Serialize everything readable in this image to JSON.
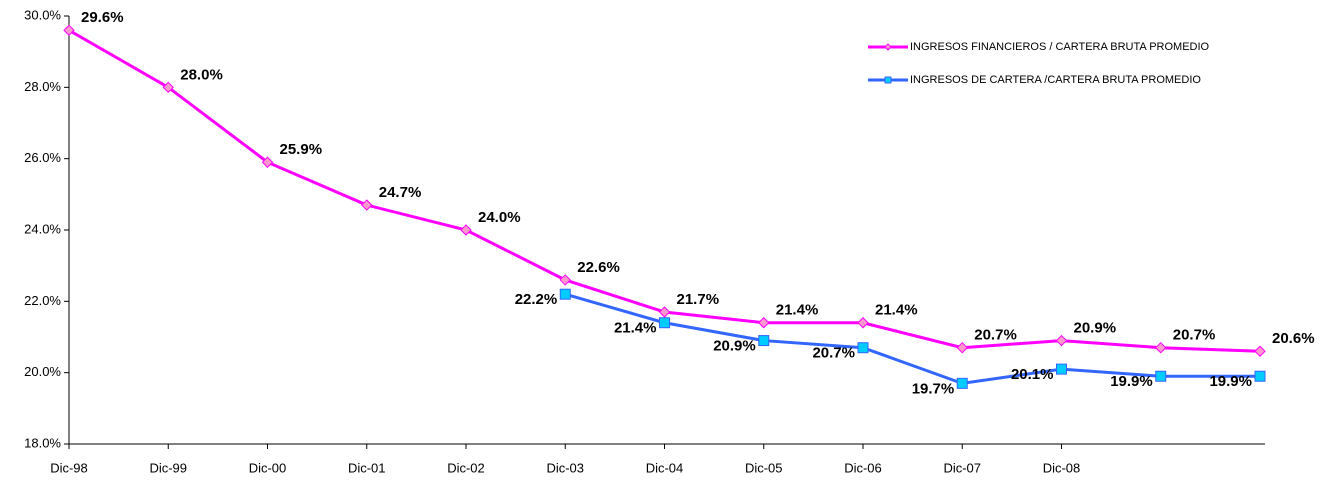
{
  "chart_data": {
    "type": "line",
    "categories": [
      "Dic-98",
      "Dic-99",
      "Dic-00",
      "Dic-01",
      "Dic-02",
      "Dic-03",
      "Dic-04",
      "Dic-05",
      "Dic-06",
      "Dic-07",
      "Dic-08",
      null,
      null
    ],
    "series": [
      {
        "name": "INGRESOS FINANCIEROS / CARTERA BRUTA PROMEDIO",
        "color": "#ff00ff",
        "marker": "diamond",
        "marker_color": "#ff99cc",
        "values": [
          29.6,
          28.0,
          25.9,
          24.7,
          24.0,
          22.6,
          21.7,
          21.4,
          21.4,
          20.7,
          20.9,
          20.7,
          20.6
        ],
        "value_labels": [
          "29.6%",
          "28.0%",
          "25.9%",
          "24.7%",
          "24.0%",
          "22.6%",
          "21.7%",
          "21.4%",
          "21.4%",
          "20.7%",
          "20.9%",
          "20.7%",
          "20.6%"
        ]
      },
      {
        "name": "INGRESOS DE CARTERA /CARTERA BRUTA PROMEDIO",
        "color": "#3366ff",
        "marker": "square",
        "marker_color": "#00ccff",
        "values": [
          null,
          null,
          null,
          null,
          null,
          22.2,
          21.4,
          20.9,
          20.7,
          19.7,
          20.1,
          19.9,
          19.9
        ],
        "value_labels": [
          null,
          null,
          null,
          null,
          null,
          "22.2%",
          "21.4%",
          "20.9%",
          "20.7%",
          "19.7%",
          "20.1%",
          "19.9%",
          "19.9%"
        ]
      }
    ],
    "ylim": [
      18,
      30
    ],
    "yticks": [
      {
        "value": 18,
        "label": "18.0%"
      },
      {
        "value": 20,
        "label": "20.0%"
      },
      {
        "value": 22,
        "label": "22.0%"
      },
      {
        "value": 24,
        "label": "24.0%"
      },
      {
        "value": 26,
        "label": "26.0%"
      },
      {
        "value": 28,
        "label": "28.0%"
      },
      {
        "value": 30,
        "label": "30.0%"
      }
    ],
    "grid": false,
    "legend": "top-right"
  }
}
